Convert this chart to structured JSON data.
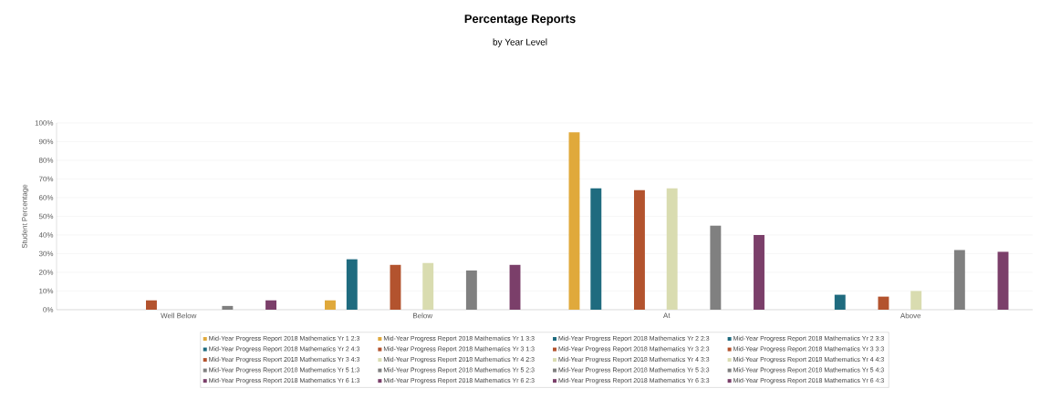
{
  "chart_data": {
    "type": "bar",
    "title": "Percentage Reports",
    "subtitle": "by Year Level",
    "ylabel": "Student Percentage",
    "categories": [
      "Well Below",
      "Below",
      "At",
      "Above"
    ],
    "ylim": [
      0,
      100
    ],
    "yticks": [
      {
        "value": 0,
        "label": "0%"
      },
      {
        "value": 10,
        "label": "10%"
      },
      {
        "value": 20,
        "label": "20%"
      },
      {
        "value": 30,
        "label": "30%"
      },
      {
        "value": 40,
        "label": "40%"
      },
      {
        "value": 50,
        "label": "50%"
      },
      {
        "value": 60,
        "label": "60%"
      },
      {
        "value": 70,
        "label": "70%"
      },
      {
        "value": 80,
        "label": "80%"
      },
      {
        "value": 90,
        "label": "90%"
      },
      {
        "value": 100,
        "label": "100%"
      }
    ],
    "grid": "y",
    "legend": "bottom",
    "series": [
      {
        "name": "Mid-Year Progress Report 2018 Mathematics Yr 1 2:3",
        "color": "#e0a93b",
        "values": [
          null,
          null,
          null,
          null
        ]
      },
      {
        "name": "Mid-Year Progress Report 2018 Mathematics Yr 1 3:3",
        "color": "#e0a93b",
        "values": [
          null,
          5,
          95,
          null
        ]
      },
      {
        "name": "Mid-Year Progress Report 2018 Mathematics Yr 2 2:3",
        "color": "#1f6b7f",
        "values": [
          null,
          null,
          null,
          null
        ]
      },
      {
        "name": "Mid-Year Progress Report 2018 Mathematics Yr 2 3:3",
        "color": "#1f6b7f",
        "values": [
          null,
          27,
          65,
          8
        ]
      },
      {
        "name": "Mid-Year Progress Report 2018 Mathematics Yr 2 4:3",
        "color": "#1f6b7f",
        "values": [
          null,
          null,
          null,
          null
        ]
      },
      {
        "name": "Mid-Year Progress Report 2018 Mathematics Yr 3 1:3",
        "color": "#b3532e",
        "values": [
          null,
          null,
          null,
          null
        ]
      },
      {
        "name": "Mid-Year Progress Report 2018 Mathematics Yr 3 2:3",
        "color": "#b3532e",
        "values": [
          null,
          null,
          null,
          null
        ]
      },
      {
        "name": "Mid-Year Progress Report 2018 Mathematics Yr 3 3:3",
        "color": "#b3532e",
        "values": [
          5,
          24,
          64,
          7
        ]
      },
      {
        "name": "Mid-Year Progress Report 2018 Mathematics Yr 3 4:3",
        "color": "#b3532e",
        "values": [
          null,
          null,
          null,
          null
        ]
      },
      {
        "name": "Mid-Year Progress Report 2018 Mathematics Yr 4 2:3",
        "color": "#d9dcb0",
        "values": [
          null,
          null,
          null,
          null
        ]
      },
      {
        "name": "Mid-Year Progress Report 2018 Mathematics Yr 4 3:3",
        "color": "#d9dcb0",
        "values": [
          null,
          25,
          65,
          10
        ]
      },
      {
        "name": "Mid-Year Progress Report 2018 Mathematics Yr 4 4:3",
        "color": "#d9dcb0",
        "values": [
          null,
          null,
          null,
          null
        ]
      },
      {
        "name": "Mid-Year Progress Report 2018 Mathematics Yr 5 1:3",
        "color": "#808080",
        "values": [
          null,
          null,
          null,
          null
        ]
      },
      {
        "name": "Mid-Year Progress Report 2018 Mathematics Yr 5 2:3",
        "color": "#808080",
        "values": [
          null,
          null,
          null,
          null
        ]
      },
      {
        "name": "Mid-Year Progress Report 2018 Mathematics Yr 5 3:3",
        "color": "#808080",
        "values": [
          2,
          21,
          45,
          32
        ]
      },
      {
        "name": "Mid-Year Progress Report 2018 Mathematics Yr 5 4:3",
        "color": "#808080",
        "values": [
          null,
          null,
          null,
          null
        ]
      },
      {
        "name": "Mid-Year Progress Report 2018 Mathematics Yr 6 1:3",
        "color": "#7b3f6a",
        "values": [
          null,
          null,
          null,
          null
        ]
      },
      {
        "name": "Mid-Year Progress Report 2018 Mathematics Yr 6 2:3",
        "color": "#7b3f6a",
        "values": [
          null,
          null,
          null,
          null
        ]
      },
      {
        "name": "Mid-Year Progress Report 2018 Mathematics Yr 6 3:3",
        "color": "#7b3f6a",
        "values": [
          5,
          24,
          40,
          31
        ]
      },
      {
        "name": "Mid-Year Progress Report 2018 Mathematics Yr 6 4:3",
        "color": "#7b3f6a",
        "values": [
          null,
          null,
          null,
          null
        ]
      }
    ]
  }
}
